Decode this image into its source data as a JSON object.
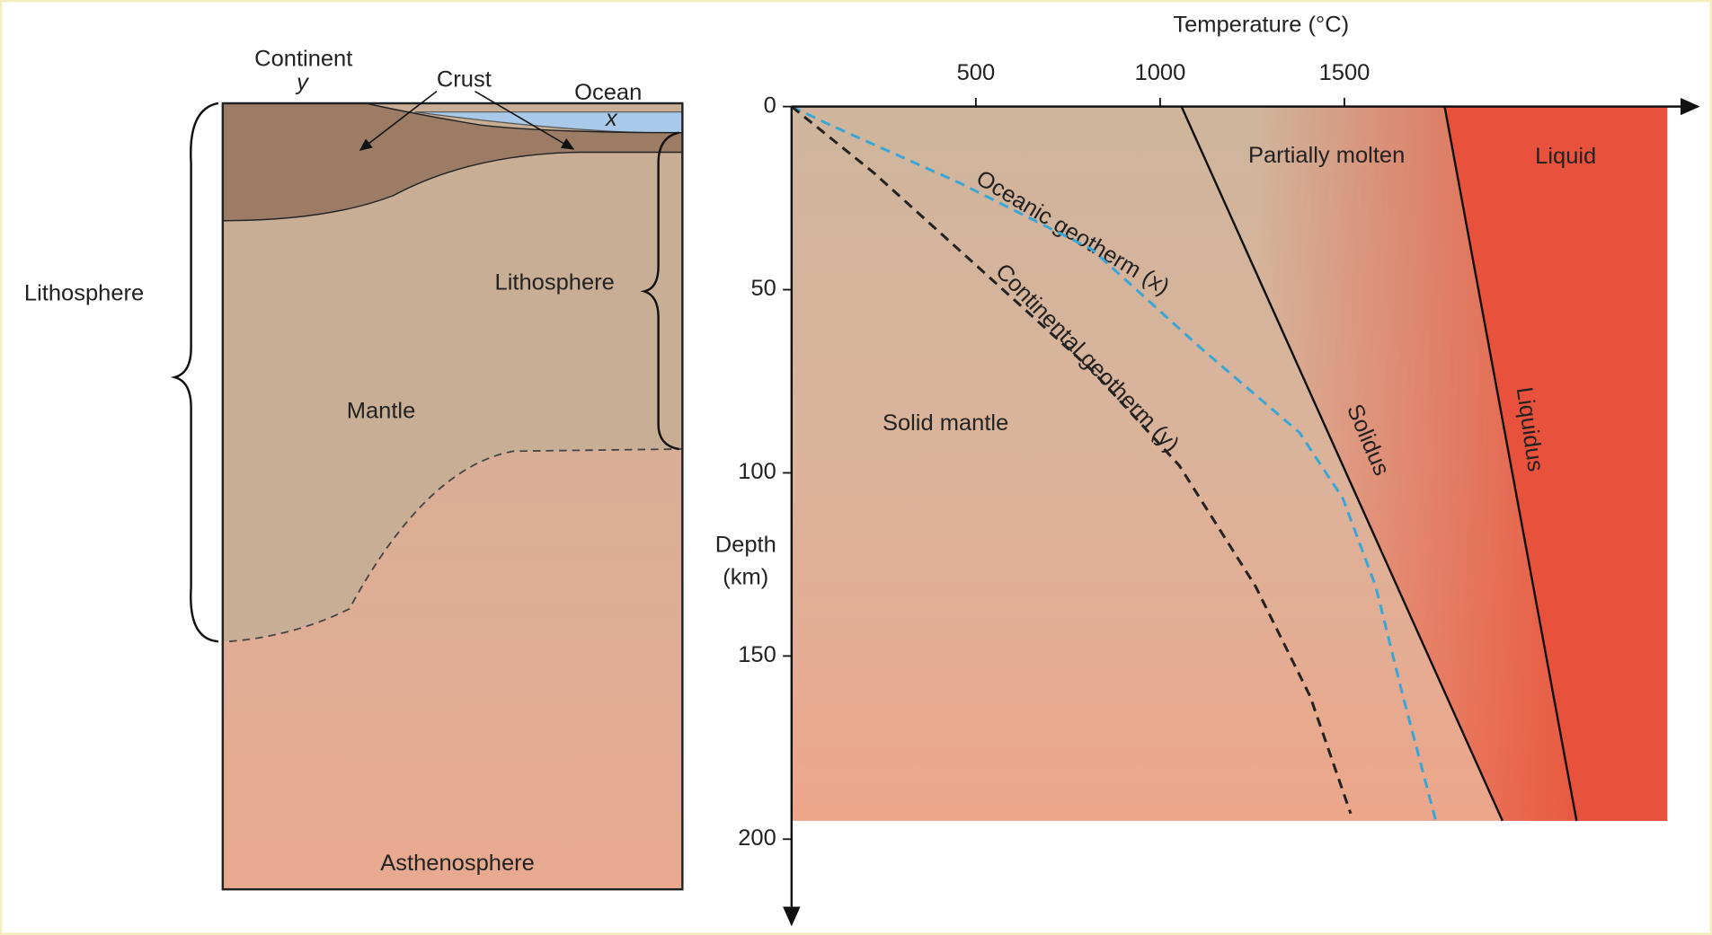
{
  "cross_section": {
    "continent": "Continent",
    "continent_mark": "y",
    "crust": "Crust",
    "ocean": "Ocean",
    "ocean_mark": "x",
    "lithosphere_left": "Lithosphere",
    "lithosphere_right": "Lithosphere",
    "mantle": "Mantle",
    "asthenosphere": "Asthenosphere"
  },
  "chart_data": {
    "type": "line",
    "x_label": "Temperature (°C)",
    "y_label": [
      "Depth",
      "(km)"
    ],
    "xlim": [
      0,
      2376
    ],
    "ylim": [
      0,
      195
    ],
    "xticks": [
      500,
      1000,
      1500
    ],
    "yticks": [
      0,
      50,
      100,
      150,
      200
    ],
    "annotations": [
      "Solid mantle",
      "Partially molten",
      "Liquid"
    ],
    "series": [
      {
        "name": "Oceanic geotherm (x)",
        "color": "#3aa6d6",
        "dashed": true,
        "x": [
          0,
          104,
          459,
          815,
          1111,
          1378,
          1496,
          1585,
          1659,
          1748
        ],
        "values": [
          0,
          5,
          21,
          39,
          66,
          89,
          107,
          131,
          161,
          195
        ]
      },
      {
        "name": "Continental geotherm (y)",
        "color": "#222222",
        "dashed": true,
        "x": [
          0,
          222,
          519,
          815,
          1052,
          1259,
          1407,
          1517
        ],
        "values": [
          0,
          18,
          45,
          72,
          98,
          131,
          161,
          193
        ]
      },
      {
        "name": "Solidus",
        "color": "#111111",
        "dashed": false,
        "x": [
          1058,
          1929
        ],
        "values": [
          0,
          195
        ]
      },
      {
        "name": "Liquidus",
        "color": "#111111",
        "dashed": false,
        "x": [
          1772,
          2130
        ],
        "values": [
          0,
          195
        ]
      }
    ]
  }
}
